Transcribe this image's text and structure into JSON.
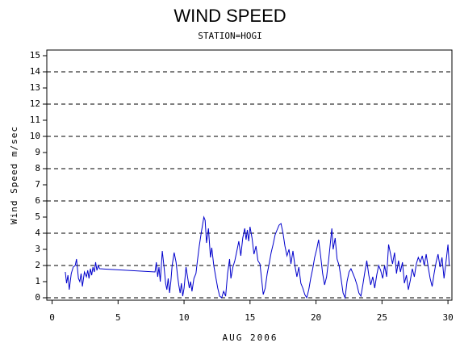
{
  "chart_data": {
    "type": "line",
    "title": "WIND SPEED",
    "subtitle": "STATION=HOGI",
    "xlabel": "AUG 2006",
    "ylabel": "Wind Speed m/sec",
    "color": "#0000cc",
    "xlim": [
      -0.4,
      30.3
    ],
    "xticks": [
      0,
      5,
      10,
      15,
      20,
      25,
      30
    ],
    "ylim": [
      -0.15,
      15.35
    ],
    "yticks": [
      0,
      1,
      2,
      3,
      4,
      5,
      6,
      7,
      8,
      9,
      10,
      11,
      12,
      13,
      14,
      15
    ],
    "ygrid": [
      0,
      2,
      4,
      6,
      8,
      10,
      12,
      14
    ],
    "x": [
      1.0,
      1.1,
      1.2,
      1.3,
      1.45,
      1.6,
      1.75,
      1.85,
      2.0,
      2.1,
      2.2,
      2.3,
      2.45,
      2.6,
      2.7,
      2.8,
      2.9,
      3.0,
      3.1,
      3.2,
      3.3,
      3.4,
      3.5,
      3.6,
      7.8,
      7.9,
      8.0,
      8.1,
      8.2,
      8.35,
      8.5,
      8.6,
      8.7,
      8.8,
      8.9,
      9.0,
      9.1,
      9.25,
      9.4,
      9.5,
      9.6,
      9.7,
      9.8,
      9.9,
      10.0,
      10.15,
      10.3,
      10.4,
      10.5,
      10.6,
      10.75,
      10.9,
      11.0,
      11.15,
      11.3,
      11.5,
      11.6,
      11.7,
      11.85,
      12.0,
      12.1,
      12.25,
      12.4,
      12.55,
      12.7,
      12.85,
      13.0,
      13.15,
      13.3,
      13.45,
      13.55,
      13.7,
      13.85,
      14.0,
      14.15,
      14.3,
      14.45,
      14.6,
      14.7,
      14.8,
      14.9,
      15.0,
      15.15,
      15.3,
      15.45,
      15.6,
      15.75,
      15.9,
      16.0,
      16.15,
      16.3,
      16.45,
      16.6,
      16.75,
      16.9,
      17.05,
      17.2,
      17.35,
      17.5,
      17.65,
      17.8,
      17.95,
      18.1,
      18.25,
      18.4,
      18.55,
      18.7,
      18.85,
      19.0,
      19.15,
      19.3,
      19.45,
      19.6,
      19.75,
      19.9,
      20.05,
      20.2,
      20.35,
      20.5,
      20.65,
      20.8,
      20.95,
      21.1,
      21.2,
      21.3,
      21.45,
      21.6,
      21.75,
      21.9,
      22.05,
      22.2,
      22.35,
      22.5,
      22.65,
      22.8,
      22.95,
      23.1,
      23.25,
      23.4,
      23.55,
      23.7,
      23.85,
      24.0,
      24.15,
      24.3,
      24.45,
      24.6,
      24.75,
      24.9,
      25.05,
      25.2,
      25.35,
      25.5,
      25.65,
      25.8,
      25.95,
      26.1,
      26.25,
      26.4,
      26.55,
      26.7,
      26.85,
      27.0,
      27.15,
      27.3,
      27.45,
      27.6,
      27.75,
      27.9,
      28.05,
      28.2,
      28.35,
      28.5,
      28.65,
      28.8,
      28.95,
      29.1,
      29.25,
      29.4,
      29.55,
      29.7,
      29.85,
      30.0,
      30.1
    ],
    "values": [
      1.6,
      0.9,
      1.4,
      0.5,
      1.5,
      1.9,
      2.0,
      2.4,
      1.2,
      1.0,
      1.5,
      0.7,
      1.6,
      1.3,
      1.7,
      1.2,
      1.8,
      1.4,
      1.9,
      1.6,
      2.2,
      1.7,
      2.0,
      1.8,
      1.6,
      2.2,
      1.3,
      1.9,
      1.0,
      2.9,
      1.8,
      0.9,
      0.5,
      1.2,
      0.3,
      1.0,
      2.0,
      2.8,
      2.2,
      1.4,
      0.8,
      0.3,
      0.9,
      0.1,
      0.6,
      1.9,
      1.1,
      0.6,
      1.0,
      0.4,
      1.2,
      1.5,
      2.2,
      3.2,
      4.0,
      5.0,
      4.8,
      3.4,
      4.3,
      2.5,
      3.1,
      2.0,
      1.3,
      0.6,
      0.1,
      0.0,
      0.4,
      0.1,
      1.5,
      2.4,
      1.2,
      1.9,
      2.3,
      2.9,
      3.5,
      2.6,
      3.7,
      4.3,
      3.6,
      4.2,
      3.5,
      4.4,
      3.7,
      2.7,
      3.2,
      2.3,
      2.1,
      1.0,
      0.2,
      0.6,
      1.5,
      2.1,
      2.8,
      3.3,
      3.9,
      4.2,
      4.5,
      4.6,
      4.0,
      3.2,
      2.6,
      3.0,
      2.1,
      2.9,
      2.0,
      1.3,
      1.9,
      0.9,
      0.6,
      0.2,
      0.0,
      0.5,
      1.2,
      1.8,
      2.5,
      3.0,
      3.6,
      2.6,
      1.5,
      0.8,
      1.3,
      2.3,
      3.5,
      4.3,
      3.0,
      3.7,
      2.4,
      2.0,
      1.2,
      0.3,
      0.0,
      1.0,
      1.6,
      1.8,
      1.5,
      1.2,
      0.8,
      0.3,
      0.1,
      0.8,
      1.6,
      2.3,
      1.4,
      0.8,
      1.3,
      0.6,
      1.4,
      2.0,
      1.7,
      1.2,
      2.0,
      1.3,
      3.3,
      2.7,
      2.1,
      2.8,
      1.5,
      2.3,
      1.6,
      2.2,
      0.9,
      1.4,
      0.5,
      1.1,
      1.8,
      1.3,
      2.1,
      2.5,
      2.2,
      2.6,
      2.0,
      2.7,
      1.9,
      1.2,
      0.7,
      1.5,
      2.2,
      2.7,
      1.9,
      2.5,
      1.2,
      2.2,
      3.3,
      2.0
    ]
  }
}
